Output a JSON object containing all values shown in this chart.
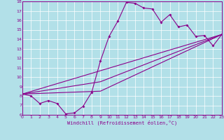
{
  "xlabel": "Windchill (Refroidissement éolien,°C)",
  "bg_color": "#b2e0e8",
  "line_color": "#8b008b",
  "xmin": 0,
  "xmax": 23,
  "ymin": 6,
  "ymax": 18,
  "series": [
    [
      0,
      8.2
    ],
    [
      1,
      8.0
    ],
    [
      2,
      7.2
    ],
    [
      3,
      7.5
    ],
    [
      4,
      7.2
    ],
    [
      5,
      6.1
    ],
    [
      6,
      6.2
    ],
    [
      7,
      6.9
    ],
    [
      8,
      8.4
    ],
    [
      9,
      11.7
    ],
    [
      10,
      14.3
    ],
    [
      11,
      15.9
    ],
    [
      12,
      17.9
    ],
    [
      13,
      17.8
    ],
    [
      14,
      17.3
    ],
    [
      15,
      17.2
    ],
    [
      16,
      15.8
    ],
    [
      17,
      16.6
    ],
    [
      18,
      15.3
    ],
    [
      19,
      15.5
    ],
    [
      20,
      14.3
    ],
    [
      21,
      14.4
    ],
    [
      22,
      13.3
    ],
    [
      23,
      14.5
    ]
  ],
  "line2": [
    [
      0,
      8.2
    ],
    [
      23,
      14.5
    ]
  ],
  "line3": [
    [
      0,
      8.2
    ],
    [
      9,
      9.5
    ],
    [
      23,
      14.5
    ]
  ],
  "line4": [
    [
      0,
      8.2
    ],
    [
      9,
      8.5
    ],
    [
      23,
      14.5
    ]
  ]
}
